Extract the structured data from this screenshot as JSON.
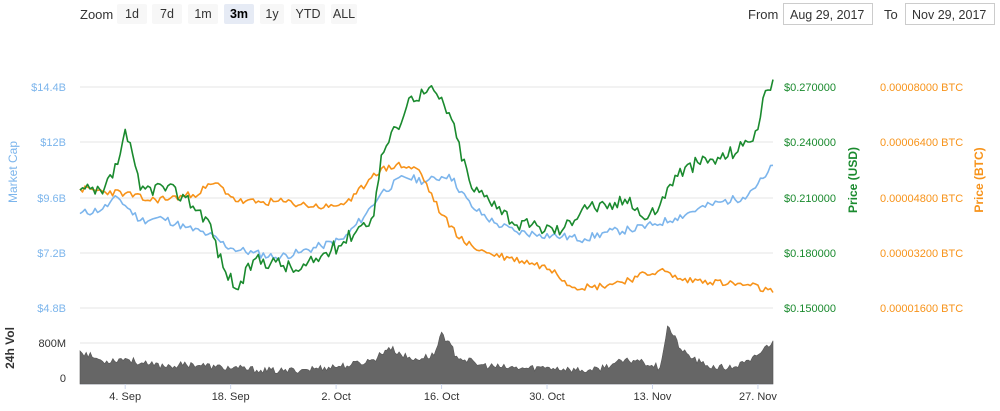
{
  "toolbar": {
    "zoom_label": "Zoom",
    "zoom_buttons": [
      "1d",
      "7d",
      "1m",
      "3m",
      "1y",
      "YTD",
      "ALL"
    ],
    "active_zoom": "3m",
    "from_label": "From",
    "from_value": "Aug 29, 2017",
    "to_label": "To",
    "to_value": "Nov 29, 2017"
  },
  "colors": {
    "market_cap": "#7cb5ec",
    "price_usd": "#1a8a2e",
    "price_btc": "#f7931a",
    "volume": "#666666"
  },
  "chart_data": {
    "type": "line",
    "x_tick_labels": [
      "4. Sep",
      "18. Sep",
      "2. Oct",
      "16. Oct",
      "30. Oct",
      "13. Nov",
      "27. Nov"
    ],
    "x_range": [
      "Aug 29, 2017",
      "Nov 29, 2017"
    ],
    "axes": {
      "market_cap": {
        "label": "Market Cap",
        "ticks": [
          "$4.8B",
          "$7.2B",
          "$9.6B",
          "$12B",
          "$14.4B"
        ],
        "range": [
          4.8,
          14.4
        ]
      },
      "price_usd": {
        "label": "Price (USD)",
        "ticks": [
          "$0.150000",
          "$0.180000",
          "$0.210000",
          "$0.240000",
          "$0.270000"
        ],
        "range": [
          0.15,
          0.27
        ]
      },
      "price_btc": {
        "label": "Price (BTC)",
        "ticks": [
          "0.00001600 BTC",
          "0.00003200 BTC",
          "0.00004800 BTC",
          "0.00006400 BTC",
          "0.00008000 BTC"
        ],
        "range": [
          1.6e-05,
          8e-05
        ]
      },
      "volume": {
        "label": "24h Vol",
        "ticks": [
          "0",
          "800M"
        ],
        "range": [
          0,
          800
        ]
      }
    },
    "series": [
      {
        "name": "Market Cap",
        "axis": "market_cap",
        "dates": [
          "2017-08-29",
          "2017-09-01",
          "2017-09-03",
          "2017-09-06",
          "2017-09-09",
          "2017-09-12",
          "2017-09-15",
          "2017-09-18",
          "2017-09-21",
          "2017-09-24",
          "2017-09-27",
          "2017-09-30",
          "2017-10-03",
          "2017-10-06",
          "2017-10-08",
          "2017-10-11",
          "2017-10-14",
          "2017-10-17",
          "2017-10-20",
          "2017-10-23",
          "2017-10-26",
          "2017-10-29",
          "2017-11-01",
          "2017-11-04",
          "2017-11-07",
          "2017-11-10",
          "2017-11-13",
          "2017-11-16",
          "2017-11-19",
          "2017-11-22",
          "2017-11-25",
          "2017-11-28",
          "2017-11-29"
        ],
        "values": [
          8.9,
          9.1,
          9.6,
          8.6,
          8.7,
          8.3,
          8.0,
          7.4,
          7.2,
          7.0,
          7.2,
          7.5,
          7.8,
          8.9,
          9.8,
          10.5,
          10.3,
          10.6,
          9.2,
          8.5,
          8.1,
          8.0,
          7.9,
          7.8,
          8.1,
          8.2,
          8.4,
          8.7,
          9.1,
          9.4,
          9.6,
          10.5,
          11.0
        ]
      },
      {
        "name": "Price (USD)",
        "axis": "price_usd",
        "dates": [
          "2017-08-29",
          "2017-09-01",
          "2017-09-03",
          "2017-09-04",
          "2017-09-06",
          "2017-09-09",
          "2017-09-12",
          "2017-09-15",
          "2017-09-17",
          "2017-09-19",
          "2017-09-21",
          "2017-09-24",
          "2017-09-27",
          "2017-09-30",
          "2017-10-03",
          "2017-10-05",
          "2017-10-07",
          "2017-10-08",
          "2017-10-10",
          "2017-10-12",
          "2017-10-15",
          "2017-10-17",
          "2017-10-20",
          "2017-10-23",
          "2017-10-26",
          "2017-10-29",
          "2017-11-01",
          "2017-11-04",
          "2017-11-07",
          "2017-11-10",
          "2017-11-12",
          "2017-11-14",
          "2017-11-16",
          "2017-11-19",
          "2017-11-22",
          "2017-11-25",
          "2017-11-27",
          "2017-11-28",
          "2017-11-29"
        ],
        "values": [
          0.214,
          0.212,
          0.228,
          0.247,
          0.214,
          0.216,
          0.21,
          0.198,
          0.172,
          0.16,
          0.176,
          0.175,
          0.17,
          0.178,
          0.186,
          0.194,
          0.2,
          0.233,
          0.248,
          0.265,
          0.268,
          0.256,
          0.215,
          0.208,
          0.195,
          0.194,
          0.192,
          0.206,
          0.204,
          0.21,
          0.198,
          0.206,
          0.222,
          0.229,
          0.231,
          0.238,
          0.247,
          0.268,
          0.274
        ]
      },
      {
        "name": "Price (BTC)",
        "axis": "price_btc",
        "dates": [
          "2017-08-29",
          "2017-09-01",
          "2017-09-04",
          "2017-09-07",
          "2017-09-10",
          "2017-09-13",
          "2017-09-16",
          "2017-09-19",
          "2017-09-22",
          "2017-09-25",
          "2017-09-28",
          "2017-10-01",
          "2017-10-04",
          "2017-10-07",
          "2017-10-10",
          "2017-10-13",
          "2017-10-16",
          "2017-10-19",
          "2017-10-22",
          "2017-10-25",
          "2017-10-28",
          "2017-10-31",
          "2017-11-02",
          "2017-11-05",
          "2017-11-08",
          "2017-11-11",
          "2017-11-14",
          "2017-11-17",
          "2017-11-20",
          "2017-11-23",
          "2017-11-26",
          "2017-11-29"
        ],
        "values": [
          5.05e-05,
          4.98e-05,
          4.92e-05,
          4.72e-05,
          4.78e-05,
          4.88e-05,
          5.22e-05,
          4.68e-05,
          4.66e-05,
          4.68e-05,
          4.58e-05,
          4.52e-05,
          4.7e-05,
          5.5e-05,
          5.75e-05,
          5.6e-05,
          4.3e-05,
          3.5e-05,
          3.2e-05,
          3.05e-05,
          2.9e-05,
          2.7e-05,
          2.25e-05,
          2.2e-05,
          2.32e-05,
          2.5e-05,
          2.7e-05,
          2.4e-05,
          2.4e-05,
          2.3e-05,
          2.25e-05,
          2.05e-05
        ]
      },
      {
        "name": "24h Vol",
        "axis": "volume",
        "dates": [
          "2017-08-29",
          "2017-09-01",
          "2017-09-04",
          "2017-09-07",
          "2017-09-10",
          "2017-09-13",
          "2017-09-16",
          "2017-09-19",
          "2017-09-22",
          "2017-09-25",
          "2017-09-28",
          "2017-10-01",
          "2017-10-04",
          "2017-10-07",
          "2017-10-09",
          "2017-10-12",
          "2017-10-15",
          "2017-10-16",
          "2017-10-18",
          "2017-10-21",
          "2017-10-24",
          "2017-10-27",
          "2017-10-30",
          "2017-11-02",
          "2017-11-05",
          "2017-11-08",
          "2017-11-11",
          "2017-11-14",
          "2017-11-15",
          "2017-11-17",
          "2017-11-20",
          "2017-11-23",
          "2017-11-26",
          "2017-11-29"
        ],
        "values": [
          620,
          380,
          450,
          300,
          280,
          320,
          250,
          220,
          180,
          160,
          200,
          250,
          300,
          420,
          700,
          420,
          520,
          1050,
          500,
          300,
          240,
          220,
          250,
          200,
          160,
          340,
          420,
          240,
          1200,
          600,
          280,
          220,
          380,
          850
        ]
      }
    ]
  }
}
